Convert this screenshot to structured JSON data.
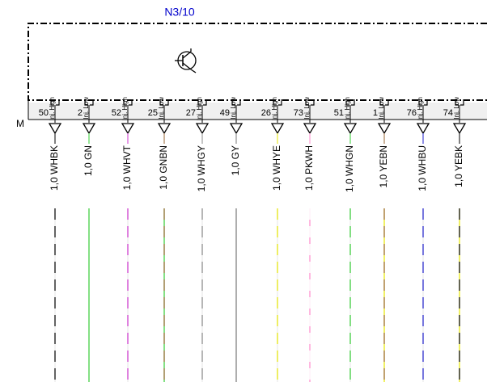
{
  "title": "N3/10",
  "ground_label": "M",
  "pins": [
    {
      "label": "Inj. High",
      "number": "50",
      "wire": "1,0 WHBK",
      "color": "#ffffff",
      "stripe": "#000000"
    },
    {
      "label": "Inj. Low",
      "number": "2",
      "wire": "1,0 GN",
      "color": "#33cc33",
      "stripe": "#33cc33"
    },
    {
      "label": "Inj. High",
      "number": "52",
      "wire": "1,0 WHVT",
      "color": "#ffffff",
      "stripe": "#cc33cc"
    },
    {
      "label": "Inj. Low",
      "number": "25",
      "wire": "1,0 GNBN",
      "color": "#33cc33",
      "stripe": "#996633"
    },
    {
      "label": "Inj. High",
      "number": "27",
      "wire": "1,0 WHGY",
      "color": "#ffffff",
      "stripe": "#888888"
    },
    {
      "label": "Inj. Low",
      "number": "49",
      "wire": "1,0 GY",
      "color": "#777777",
      "stripe": "#777777"
    },
    {
      "label": "Inj. High",
      "number": "26",
      "wire": "1,0 WHYE",
      "color": "#ffffff",
      "stripe": "#e6e600"
    },
    {
      "label": "Inj. Low",
      "number": "73",
      "wire": "1,0 PKWH",
      "color": "#ff88cc",
      "stripe": "#ffffff"
    },
    {
      "label": "Inj. High",
      "number": "51",
      "wire": "1,0 WHGN",
      "color": "#ffffff",
      "stripe": "#33cc33"
    },
    {
      "label": "Inj. Low",
      "number": "1",
      "wire": "1,0 YEBN",
      "color": "#e6e600",
      "stripe": "#996633"
    },
    {
      "label": "Inj. High",
      "number": "76",
      "wire": "1,0 WHBU",
      "color": "#ffffff",
      "stripe": "#2222cc"
    },
    {
      "label": "Inj. Low",
      "number": "74",
      "wire": "1,0 YEBK",
      "color": "#e6e600",
      "stripe": "#000000"
    }
  ]
}
